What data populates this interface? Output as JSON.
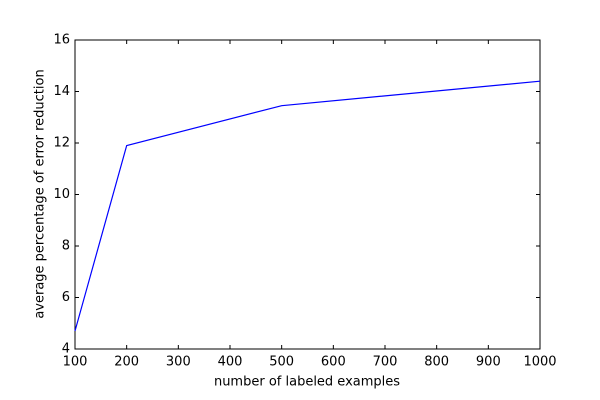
{
  "chart_data": {
    "type": "line",
    "x": [
      100,
      200,
      500,
      1000
    ],
    "series": [
      {
        "color": "#0000ff",
        "values": [
          4.7,
          11.9,
          13.45,
          14.4
        ]
      }
    ],
    "xlabel": "number of labeled examples",
    "ylabel": "average percentage of error reduction",
    "xlim": [
      100,
      1000
    ],
    "xticks": [
      100,
      200,
      300,
      400,
      500,
      600,
      700,
      800,
      900,
      1000
    ],
    "ylim": [
      4,
      16
    ],
    "yticks": [
      4,
      6,
      8,
      10,
      12,
      14,
      16
    ],
    "grid": false
  }
}
